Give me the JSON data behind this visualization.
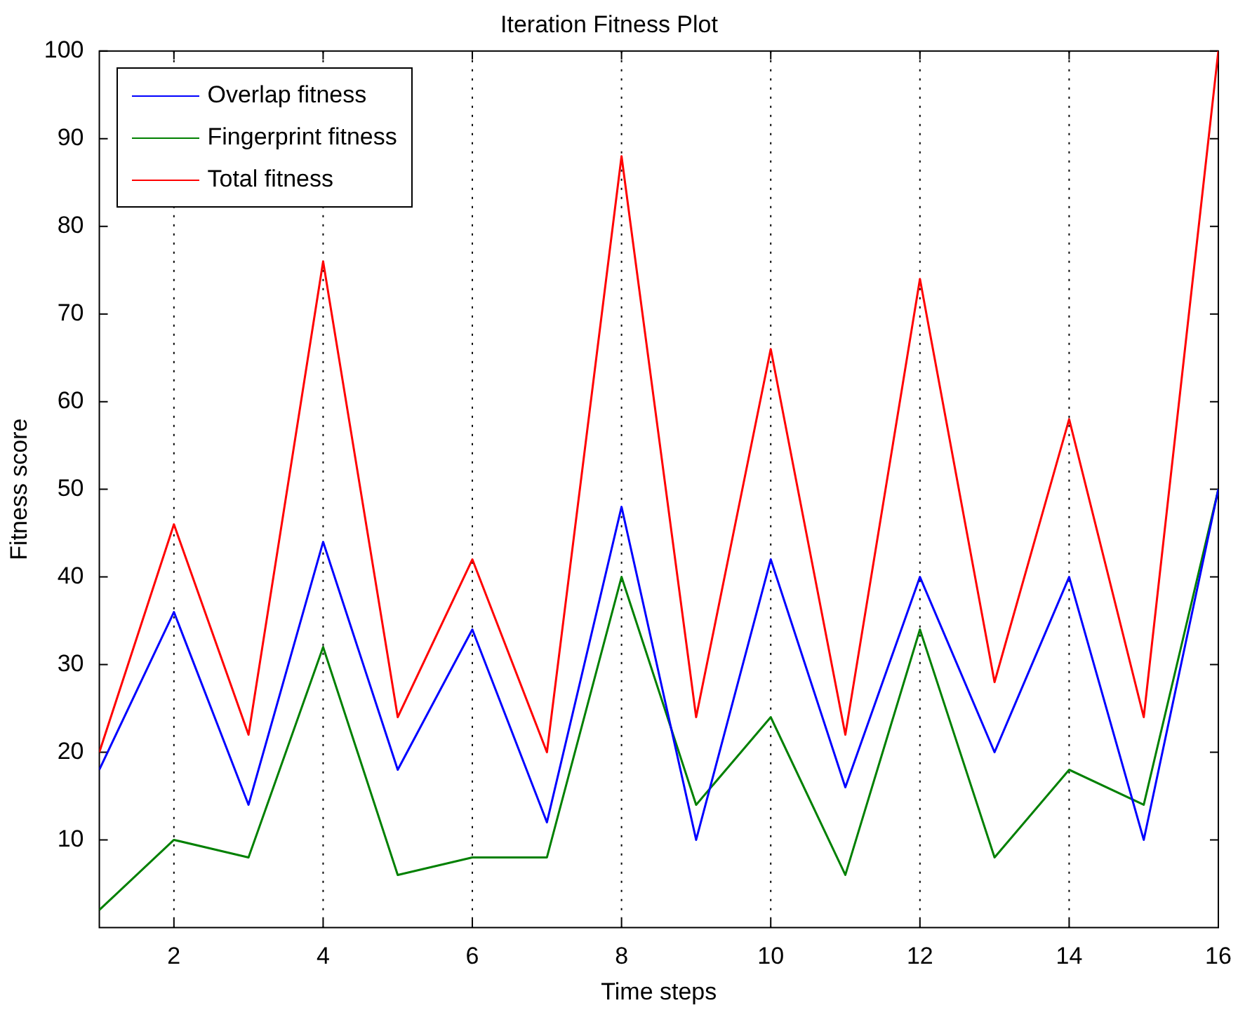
{
  "chart_data": {
    "type": "line",
    "title": "Iteration Fitness Plot",
    "xlabel": "Time steps",
    "ylabel": "Fitness score",
    "x": [
      1,
      2,
      3,
      4,
      5,
      6,
      7,
      8,
      9,
      10,
      11,
      12,
      13,
      14,
      15,
      16
    ],
    "series": [
      {
        "name": "Overlap fitness",
        "color": "#0000ff",
        "values": [
          18,
          36,
          14,
          44,
          18,
          34,
          12,
          48,
          10,
          42,
          16,
          40,
          20,
          40,
          10,
          50
        ]
      },
      {
        "name": "Fingerprint fitness",
        "color": "#008000",
        "values": [
          2,
          10,
          8,
          32,
          6,
          8,
          8,
          40,
          14,
          24,
          6,
          34,
          8,
          18,
          14,
          50
        ]
      },
      {
        "name": "Total fitness",
        "color": "#ff0000",
        "values": [
          20,
          46,
          22,
          76,
          24,
          42,
          20,
          88,
          24,
          66,
          22,
          74,
          28,
          58,
          24,
          100
        ]
      }
    ],
    "xlim": [
      1,
      16
    ],
    "xticks": [
      2,
      4,
      6,
      8,
      10,
      12,
      14,
      16
    ],
    "ylim": [
      0,
      100
    ],
    "yticks": [
      10,
      20,
      30,
      40,
      50,
      60,
      70,
      80,
      90,
      100
    ],
    "grid": "x",
    "legend": "top left",
    "marker": "none",
    "line_style": "solid"
  }
}
